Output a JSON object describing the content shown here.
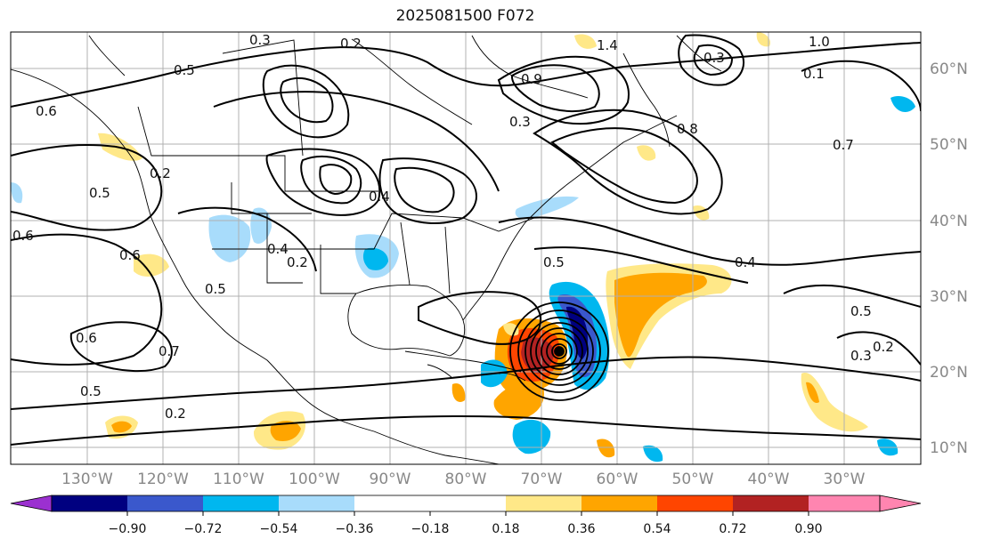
{
  "title": "2025081500 F072",
  "map": {
    "lon_labels": [
      "130°W",
      "120°W",
      "110°W",
      "100°W",
      "90°W",
      "80°W",
      "70°W",
      "60°W",
      "50°W",
      "40°W",
      "30°W"
    ],
    "lat_labels": [
      "60°N",
      "50°N",
      "40°N",
      "30°N",
      "20°N",
      "10°N"
    ],
    "contour_labels": [
      "0.3",
      "0.2",
      "0.5",
      "1.0",
      "0.9",
      "0.3",
      "0.8",
      "0.7",
      "0.4",
      "0.3",
      "0.5",
      "0.6",
      "0.6",
      "0.6",
      "0.2",
      "0.5",
      "0.4",
      "0.2",
      "0.5",
      "0.4",
      "0.6",
      "0.7",
      "0.5",
      "0.2",
      "0.3",
      "0.2",
      "0.5",
      "0.1",
      "1.4"
    ],
    "fill_colors": {
      "neg_light": "#a8dcfb",
      "neg_mid": "#00b7ef",
      "neg_dark": "#3050cc",
      "neg_deep": "#000080",
      "pos_light": "#ffe888",
      "pos_mid": "#ffa500",
      "pos_dark": "#ff4500",
      "pos_deep": "#b22222",
      "pos_max": "#ff85b0",
      "neg_min": "#9b30d0"
    }
  },
  "colorbar": {
    "ticks": [
      "−0.90",
      "−0.72",
      "−0.54",
      "−0.36",
      "−0.18",
      "0.18",
      "0.36",
      "0.54",
      "0.72",
      "0.90"
    ],
    "colors": [
      "#9b30d0",
      "#000080",
      "#3a58cc",
      "#00b7ef",
      "#a8dcfb",
      "#ffffff",
      "#ffe888",
      "#ffa500",
      "#ff4500",
      "#b22222",
      "#ff85b0"
    ]
  }
}
